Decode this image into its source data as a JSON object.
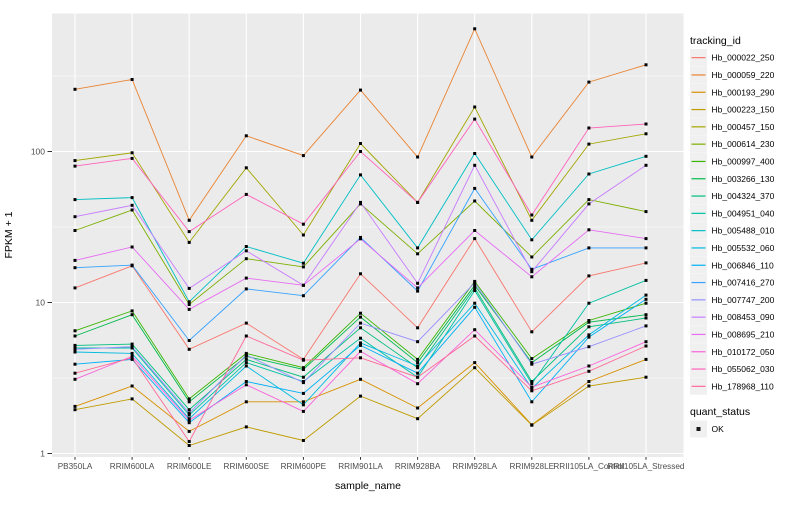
{
  "chart_data": {
    "type": "line",
    "title": "",
    "xlabel": "sample_name",
    "ylabel": "FPKM + 1",
    "y_scale": "log10",
    "y_ticks": [
      "1",
      "10",
      "100"
    ],
    "ylim": [
      0.95,
      820
    ],
    "grid": "on",
    "panel_bg": "#EBEBEB",
    "grid_color": "#FFFFFF",
    "point_color": "#000000",
    "tick_label_color": "#4D4D4D",
    "legend_position": "right",
    "legend": {
      "tracking_title": "tracking_id",
      "quant_title": "quant_status",
      "quant_value": "OK"
    },
    "x_categories": [
      "PB350LA",
      "RRIM600LA",
      "RRIM600LE",
      "RRIM600SE",
      "RRIM600PE",
      "RRIM901LA",
      "RRIM928BA",
      "RRIM928LA",
      "RRIM928LE",
      "RRII105LA_Control",
      "RRII105LA_Stressed"
    ],
    "series": [
      {
        "name": "Hb_000022_250",
        "color": "#F8766D",
        "values": [
          12.5,
          17.5,
          4.9,
          7.3,
          4.2,
          15.5,
          6.8,
          26.5,
          6.4,
          15,
          18.3
        ]
      },
      {
        "name": "Hb_000059_220",
        "color": "#EA8331",
        "values": [
          258,
          300,
          35,
          127,
          94,
          255,
          92,
          650,
          92,
          288,
          375
        ]
      },
      {
        "name": "Hb_000193_290",
        "color": "#D89000",
        "values": [
          2.05,
          2.8,
          1.4,
          2.2,
          2.2,
          3.1,
          2.0,
          4.0,
          1.55,
          3.0,
          4.2
        ]
      },
      {
        "name": "Hb_000223_150",
        "color": "#C09B00",
        "values": [
          1.95,
          2.3,
          1.13,
          1.5,
          1.22,
          2.4,
          1.7,
          3.7,
          1.54,
          2.8,
          3.2
        ]
      },
      {
        "name": "Hb_000457_150",
        "color": "#A3A500",
        "values": [
          87,
          98,
          25,
          78,
          28,
          113,
          46,
          197,
          35,
          112,
          131
        ]
      },
      {
        "name": "Hb_000614_230",
        "color": "#7CAE00",
        "values": [
          30,
          41,
          9.7,
          19.5,
          17.2,
          45,
          21,
          47,
          20,
          48,
          40
        ]
      },
      {
        "name": "Hb_000997_400",
        "color": "#39B600",
        "values": [
          6.5,
          8.8,
          2.3,
          4.6,
          3.7,
          8.5,
          4.2,
          13.8,
          4.25,
          7.6,
          9.9
        ]
      },
      {
        "name": "Hb_003266_130",
        "color": "#00BB4E",
        "values": [
          6.0,
          8.3,
          2.2,
          4.4,
          3.6,
          8.0,
          4.0,
          13.0,
          4.0,
          7.4,
          8.3
        ]
      },
      {
        "name": "Hb_004324_370",
        "color": "#00BF7D",
        "values": [
          5.2,
          5.3,
          1.95,
          4.2,
          3.2,
          6.8,
          3.7,
          12.5,
          3.0,
          6.9,
          7.9
        ]
      },
      {
        "name": "Hb_004951_040",
        "color": "#00C1A3",
        "values": [
          5.0,
          5.0,
          1.8,
          4.0,
          3.0,
          5.8,
          3.2,
          12.0,
          2.9,
          9.9,
          14.0
        ]
      },
      {
        "name": "Hb_005488_010",
        "color": "#00BFC4",
        "values": [
          48,
          49.5,
          10.1,
          23.5,
          18.2,
          70,
          23,
          97,
          26,
          71,
          93
        ]
      },
      {
        "name": "Hb_005532_060",
        "color": "#00BAE0",
        "values": [
          4.7,
          4.6,
          1.7,
          3.8,
          2.1,
          5.4,
          3.8,
          9.9,
          2.7,
          6.1,
          11.2
        ]
      },
      {
        "name": "Hb_006846_110",
        "color": "#00B0F6",
        "values": [
          3.9,
          4.2,
          1.6,
          3.0,
          2.5,
          5.2,
          3.4,
          9.3,
          2.2,
          5.9,
          10.5
        ]
      },
      {
        "name": "Hb_007416_270",
        "color": "#35A2FF",
        "values": [
          17,
          17.7,
          5.6,
          12.3,
          11.1,
          27,
          11.9,
          57,
          16.6,
          23,
          23
        ]
      },
      {
        "name": "Hb_007747_200",
        "color": "#9590FF",
        "values": [
          4.9,
          5.1,
          1.85,
          4.5,
          2.95,
          7.3,
          5.5,
          13.5,
          3.9,
          5.1,
          7.0
        ]
      },
      {
        "name": "Hb_008453_090",
        "color": "#C77CFF",
        "values": [
          37,
          44,
          12.4,
          22,
          13,
          46,
          13.4,
          81,
          16,
          45,
          81
        ]
      },
      {
        "name": "Hb_008695_210",
        "color": "#E76BF3",
        "values": [
          19,
          23.3,
          9.0,
          14.5,
          13.0,
          26.4,
          12.5,
          30,
          14.8,
          30.3,
          26.5
        ]
      },
      {
        "name": "Hb_010172_050",
        "color": "#FA62DB",
        "values": [
          3.1,
          4.4,
          1.66,
          2.85,
          1.9,
          4.75,
          2.9,
          6.6,
          2.75,
          3.8,
          5.5
        ]
      },
      {
        "name": "Hb_055062_030",
        "color": "#FF62BC",
        "values": [
          80,
          90,
          29.5,
          52,
          33,
          100,
          46,
          164,
          38,
          143,
          152
        ]
      },
      {
        "name": "Hb_178968_110",
        "color": "#FF6A98",
        "values": [
          3.4,
          4.3,
          1.2,
          6.0,
          4.15,
          4.3,
          3.2,
          6.0,
          2.6,
          3.5,
          5.15
        ]
      }
    ]
  }
}
